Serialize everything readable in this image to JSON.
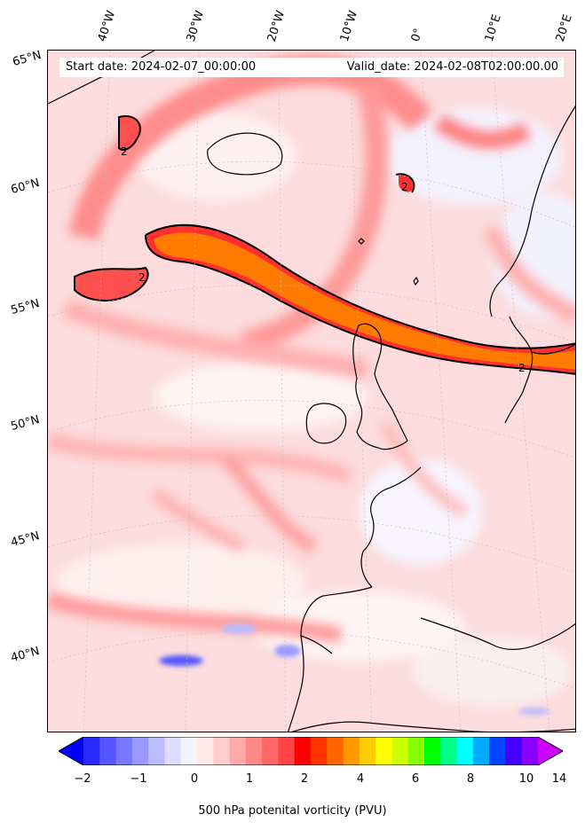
{
  "header": {
    "start_date": "Start date: 2024-02-07_00:00:00",
    "valid_date": "Valid_date: 2024-02-08T02:00:00.00"
  },
  "axes": {
    "longitude_labels": [
      "40°W",
      "30°W",
      "20°W",
      "10°W",
      "0°",
      "10°E",
      "20°E"
    ],
    "latitude_labels": [
      "65°N",
      "60°N",
      "55°N",
      "50°N",
      "45°N",
      "40°N"
    ]
  },
  "map": {
    "variable": "500 hPa potential vorticity",
    "units": "PVU",
    "projection": "rotated pole / lambert-like",
    "domain_lon": [
      -45,
      22
    ],
    "domain_lat": [
      37,
      66
    ],
    "contour_level": "2",
    "contour_labels": [
      "2",
      "2",
      "2",
      "2"
    ],
    "colors": {
      "background_pv": "#fcdcdc",
      "high_pv_streamer": "#ff2a2a",
      "peak_pv": "#ff8c00",
      "negative_pv": "#7070ff",
      "coastline": "#000000"
    }
  },
  "colorbar": {
    "label": "500 hPa potenital vorticity (PVU)",
    "tick_labels": [
      "−2",
      "−1",
      "0",
      "1",
      "2",
      "4",
      "6",
      "8",
      "10",
      "14"
    ],
    "colors": [
      "#0000ff",
      "#2a2aff",
      "#5555ff",
      "#7777ff",
      "#9999ff",
      "#bbbbff",
      "#ddddff",
      "#f4f4ff",
      "#ffe8e8",
      "#ffcccc",
      "#ffaaaa",
      "#ff8888",
      "#ff6666",
      "#ff4444",
      "#ff0000",
      "#ff3300",
      "#ff6600",
      "#ff9900",
      "#ffcc00",
      "#ffff00",
      "#ccff00",
      "#88ff00",
      "#00ff00",
      "#00ff88",
      "#00ffff",
      "#00aaff",
      "#0044ff",
      "#4400ff",
      "#8800ff",
      "#cc00ff"
    ]
  }
}
